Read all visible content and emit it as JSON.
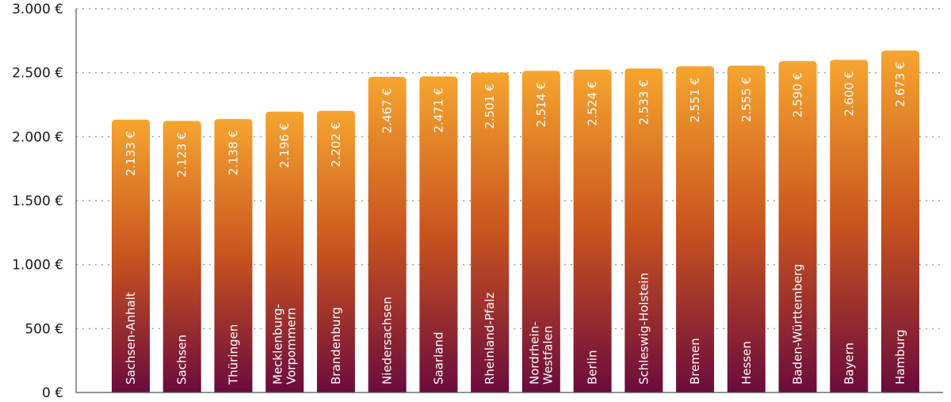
{
  "chart_data": {
    "type": "bar",
    "title": "",
    "xlabel": "",
    "ylabel": "",
    "currency": "€",
    "ylim": [
      0,
      3000
    ],
    "yticks": [
      0,
      500,
      1000,
      1500,
      2000,
      2500,
      3000
    ],
    "ytick_labels": [
      "0 €",
      "500 €",
      "1.000 €",
      "1.500 €",
      "2.000 €",
      "2.500 €",
      "3.000 €"
    ],
    "grid": true,
    "categories": [
      "Sachsen-Anhalt",
      "Sachsen",
      "Thüringen",
      "Mecklenburg-Vorpommern",
      "Brandenburg",
      "Niedersachsen",
      "Saarland",
      "Rheinland-Pfalz",
      "Nordrhein-Westfalen",
      "Berlin",
      "Schleswig-Holstein",
      "Bremen",
      "Hessen",
      "Baden-Württemberg",
      "Bayern",
      "Hamburg"
    ],
    "category_lines": [
      [
        "Sachsen-Anhalt"
      ],
      [
        "Sachsen"
      ],
      [
        "Thüringen"
      ],
      [
        "Mecklenburg-",
        "Vorpommern"
      ],
      [
        "Brandenburg"
      ],
      [
        "Niedersachsen"
      ],
      [
        "Saarland"
      ],
      [
        "Rheinland-Pfalz"
      ],
      [
        "Nordrhein-",
        "Westfalen"
      ],
      [
        "Berlin"
      ],
      [
        "Schleswig-Holstein"
      ],
      [
        "Bremen"
      ],
      [
        "Hessen"
      ],
      [
        "Baden-Württemberg"
      ],
      [
        "Bayern"
      ],
      [
        "Hamburg"
      ]
    ],
    "values": [
      2133,
      2123,
      2138,
      2196,
      2202,
      2467,
      2471,
      2501,
      2514,
      2524,
      2533,
      2551,
      2555,
      2590,
      2600,
      2673
    ],
    "value_labels": [
      "2.133 €",
      "2.123 €",
      "2.138 €",
      "2.196 €",
      "2.202 €",
      "2.467 €",
      "2.471 €",
      "2.501 €",
      "2.514 €",
      "2.524 €",
      "2.533 €",
      "2.551 €",
      "2.555 €",
      "2.590 €",
      "2.600 €",
      "2.673 €"
    ],
    "colors": {
      "bar_top": "#f6a52f",
      "bar_mid": "#c8531f",
      "bar_bottom": "#6b0b3d",
      "grid": "#8a8a8a",
      "axis": "#555555",
      "text": "#1a1a1a"
    }
  }
}
